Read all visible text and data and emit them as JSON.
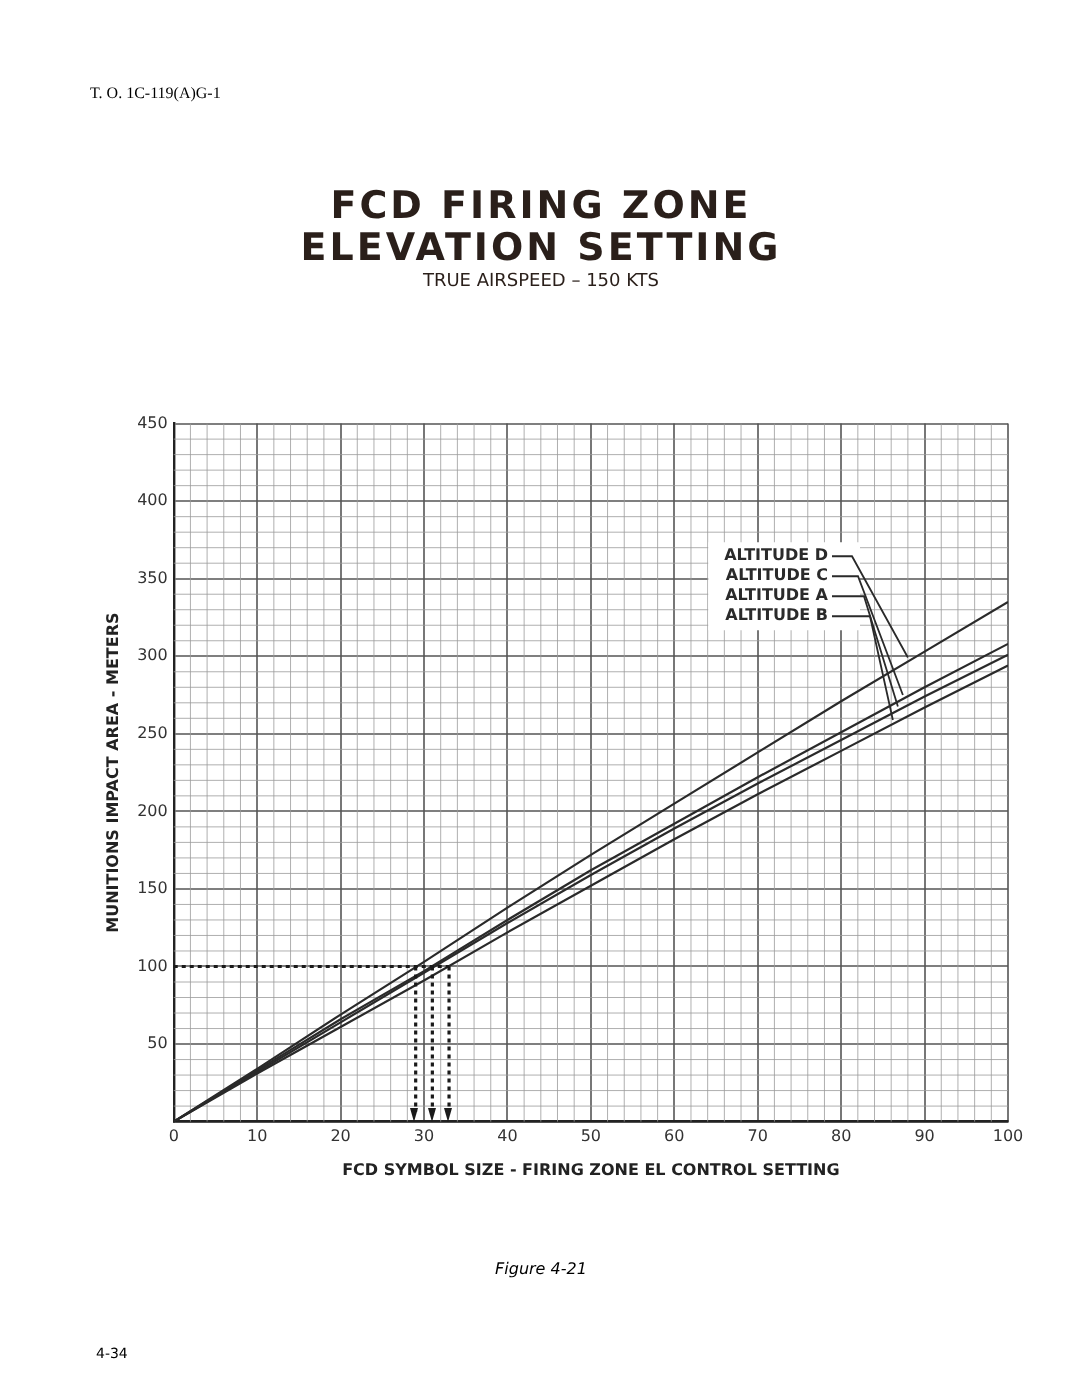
{
  "chart_data": {
    "type": "line",
    "title": "FCD FIRING ZONE\nELEVATION SETTING",
    "subtitle": "TRUE AIRSPEED – 150 KTS",
    "xlabel": "FCD SYMBOL SIZE - FIRING ZONE EL CONTROL SETTING",
    "ylabel": "MUNITIONS IMPACT AREA - METERS",
    "annotations": [
      "T. O. 1C-119(A)G-1",
      "Figure 4-21",
      "4-34"
    ],
    "x": [
      0,
      10,
      20,
      30,
      40,
      50,
      60,
      70,
      80,
      90,
      100
    ],
    "series": [
      {
        "name": "ALTITUDE D",
        "color": "#2a2a2a",
        "values": [
          0,
          34,
          69,
          103,
          138,
          172,
          205,
          238,
          271,
          303,
          335
        ]
      },
      {
        "name": "ALTITUDE C",
        "color": "#2a2a2a",
        "values": [
          0,
          33,
          66,
          97,
          130,
          162,
          192,
          222,
          251,
          280,
          308
        ]
      },
      {
        "name": "ALTITUDE A",
        "color": "#2a2a2a",
        "values": [
          0,
          32,
          64,
          96,
          128,
          159,
          189,
          218,
          246,
          274,
          301
        ]
      },
      {
        "name": "ALTITUDE B",
        "color": "#2a2a2a",
        "values": [
          0,
          31,
          61,
          91,
          122,
          152,
          182,
          211,
          239,
          267,
          294
        ]
      }
    ],
    "xlim": [
      0,
      100
    ],
    "xticks": [
      0,
      10,
      20,
      30,
      40,
      50,
      60,
      70,
      80,
      90,
      100
    ],
    "ylim": [
      0,
      450
    ],
    "yticks": [
      {
        "value": 0,
        "label": null
      },
      50,
      100,
      150,
      200,
      250,
      300,
      350,
      400,
      450
    ],
    "ref_lines": [
      {
        "axis": "y",
        "value": 100,
        "line_style": "dotted",
        "color": "#1a1a1a"
      },
      {
        "axis": "x",
        "value": 29,
        "line_style": "dotted",
        "color": "#1a1a1a"
      },
      {
        "axis": "x",
        "value": 31,
        "line_style": "dotted",
        "color": "#1a1a1a"
      },
      {
        "axis": "x",
        "value": 33,
        "line_style": "dotted",
        "color": "#1a1a1a"
      }
    ],
    "grid": true,
    "legend": "top right",
    "marker": "none",
    "line_style": "solid"
  }
}
